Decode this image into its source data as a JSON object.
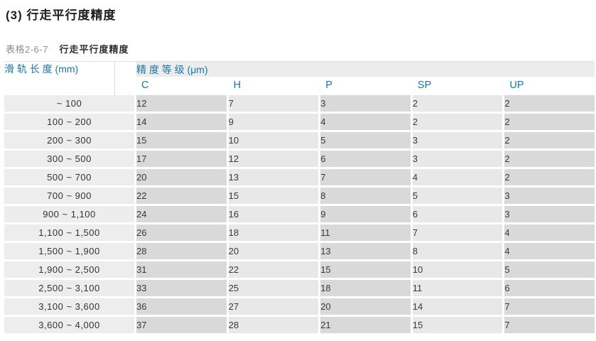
{
  "page": {
    "title": "(3) 行走平行度精度",
    "caption_label": "表格2-6-7",
    "caption_title": "行走平行度精度"
  },
  "table": {
    "length_header": "滑 轨 长 度 (mm)",
    "precision_header": "精 度 等 级 (μm)",
    "grade_columns": [
      "C",
      "H",
      "P",
      "SP",
      "UP"
    ],
    "rows": [
      {
        "length": "~ 100",
        "values": [
          12,
          7,
          3,
          2,
          2
        ]
      },
      {
        "length": "100 ~ 200",
        "values": [
          14,
          9,
          4,
          2,
          2
        ]
      },
      {
        "length": "200 ~ 300",
        "values": [
          15,
          10,
          5,
          3,
          2
        ]
      },
      {
        "length": "300 ~ 500",
        "values": [
          17,
          12,
          6,
          3,
          2
        ]
      },
      {
        "length": "500 ~ 700",
        "values": [
          20,
          13,
          7,
          4,
          2
        ]
      },
      {
        "length": "700 ~ 900",
        "values": [
          22,
          15,
          8,
          5,
          3
        ]
      },
      {
        "length": "900 ~ 1,100",
        "values": [
          24,
          16,
          9,
          6,
          3
        ]
      },
      {
        "length": "1,100 ~ 1,500",
        "values": [
          26,
          18,
          11,
          7,
          4
        ]
      },
      {
        "length": "1,500 ~ 1,900",
        "values": [
          28,
          20,
          13,
          8,
          4
        ]
      },
      {
        "length": "1,900 ~ 2,500",
        "values": [
          31,
          22,
          15,
          10,
          5
        ]
      },
      {
        "length": "2,500 ~ 3,100",
        "values": [
          33,
          25,
          18,
          11,
          6
        ]
      },
      {
        "length": "3,100 ~ 3,600",
        "values": [
          36,
          27,
          20,
          14,
          7
        ]
      },
      {
        "length": "3,600 ~ 4,000",
        "values": [
          37,
          28,
          21,
          15,
          7
        ]
      }
    ]
  },
  "colors": {
    "accent_blue": "#1778a8",
    "caption_gray": "#8e8e8e",
    "length_column_bg": "#ededed",
    "dark_column_bg": "#d9d9d9",
    "light_column_bg": "#e8e8e8",
    "header_band_bg": "#ececec"
  }
}
